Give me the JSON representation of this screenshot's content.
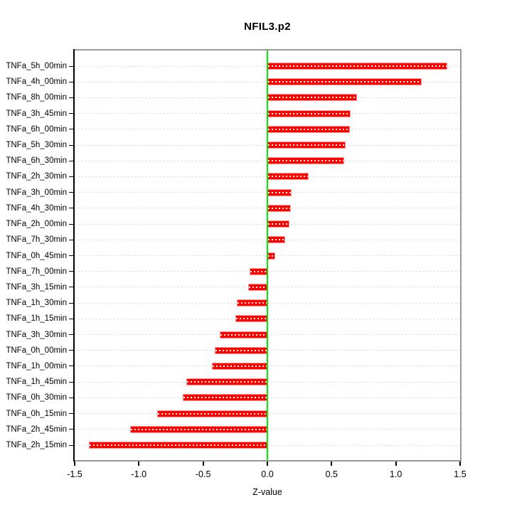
{
  "chart_data": {
    "type": "bar",
    "orientation": "horizontal",
    "title": "NFIL3.p2",
    "xlabel": "Z-value",
    "ylabel": "",
    "xlim": [
      -1.5,
      1.5
    ],
    "x_ticks": [
      -1.5,
      -1.0,
      -0.5,
      0.0,
      0.5,
      1.0,
      1.5
    ],
    "x_tick_labels": [
      "-1.5",
      "-1.0",
      "-0.5",
      "0.0",
      "0.5",
      "1.0",
      "1.5"
    ],
    "categories": [
      "TNFa_5h_00min",
      "TNFa_4h_00min",
      "TNFa_8h_00min",
      "TNFa_3h_45min",
      "TNFa_6h_00min",
      "TNFa_5h_30min",
      "TNFa_6h_30min",
      "TNFa_2h_30min",
      "TNFa_3h_00min",
      "TNFa_4h_30min",
      "TNFa_2h_00min",
      "TNFa_7h_30min",
      "TNFa_0h_45min",
      "TNFa_7h_00min",
      "TNFa_3h_15min",
      "TNFa_1h_30min",
      "TNFa_1h_15min",
      "TNFa_3h_30min",
      "TNFa_0h_00min",
      "TNFa_1h_00min",
      "TNFa_1h_45min",
      "TNFa_0h_30min",
      "TNFa_0h_15min",
      "TNFa_2h_45min",
      "TNFa_2h_15min"
    ],
    "values": [
      1.4,
      1.2,
      0.7,
      0.65,
      0.64,
      0.61,
      0.6,
      0.32,
      0.19,
      0.18,
      0.17,
      0.14,
      0.06,
      -0.14,
      -0.15,
      -0.24,
      -0.25,
      -0.37,
      -0.41,
      -0.43,
      -0.63,
      -0.66,
      -0.86,
      -1.07,
      -1.39
    ],
    "grid": "horizontal dotted line per category row",
    "legend": "none",
    "zero_line_value": 0.0,
    "colors": {
      "bar_fill": "#ff0000",
      "bar_border": "#ff9a9a",
      "bar_inner_dash": "#ffffff",
      "zero_line": "#00ee00",
      "grid_line": "#d9d9d9",
      "box_border": "#999999",
      "axis": "#000000",
      "text": "#000000",
      "background": "#ffffff"
    }
  }
}
